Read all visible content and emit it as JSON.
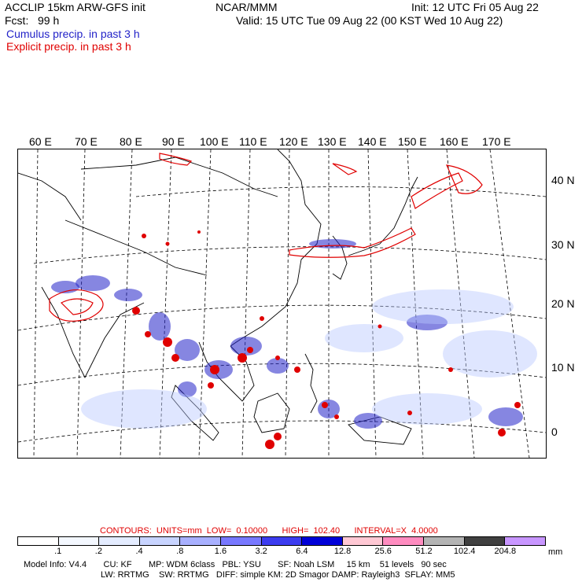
{
  "header": {
    "line1_left": "ACCLIP 15km ARW-GFS init",
    "line1_center": "NCAR/MMM",
    "line1_right": "Init: 12 UTC Fri 05 Aug 22",
    "line2_left": "Fcst:   99 h",
    "line2_right": "Valid: 15 UTC Tue 09 Aug 22 (00 KST Wed 10 Aug 22)",
    "legend_cumulus": "Cumulus precip. in past 3 h",
    "legend_explicit": "Explicit precip. in past 3 h"
  },
  "map": {
    "lon_labels": [
      "60 E",
      "70 E",
      "80 E",
      "90 E",
      "100 E",
      "110 E",
      "120 E",
      "130 E",
      "140 E",
      "150 E",
      "160 E",
      "170 E"
    ],
    "lat_labels": [
      "40 N",
      "30 N",
      "20 N",
      "10 N",
      "0"
    ],
    "colors": {
      "cumulus": "#2323c8",
      "explicit": "#e00000",
      "coast": "#000000",
      "grid": "#000000"
    }
  },
  "contours": {
    "label": "CONTOURS:  UNITS=mm  LOW=  0.10000      HIGH=  102.40      INTERVAL=X  4.0000"
  },
  "colorbar": {
    "unit": "mm",
    "labels": [
      ".1",
      ".2",
      ".4",
      ".8",
      "1.6",
      "3.2",
      "6.4",
      "12.8",
      "25.6",
      "51.2",
      "102.4",
      "204.8"
    ],
    "colors": [
      "#ffffff",
      "#f4f8ff",
      "#e4ecff",
      "#c8d4ff",
      "#a8b0ff",
      "#7878ff",
      "#3c3cf0",
      "#0000d8",
      "#ffc8d4",
      "#ff8cc0",
      "#b4b4b4",
      "#404040",
      "#c896ff"
    ]
  },
  "footer": {
    "line1": "Model Info: V4.4       CU: KF       MP: WDM 6class   PBL: YSU       SF: Noah LSM     15 km    51 levels   90 sec",
    "line2": "LW: RRTMG    SW: RRTMG   DIFF: simple KM: 2D Smagor DAMP: Rayleigh3  SFLAY: MM5"
  }
}
